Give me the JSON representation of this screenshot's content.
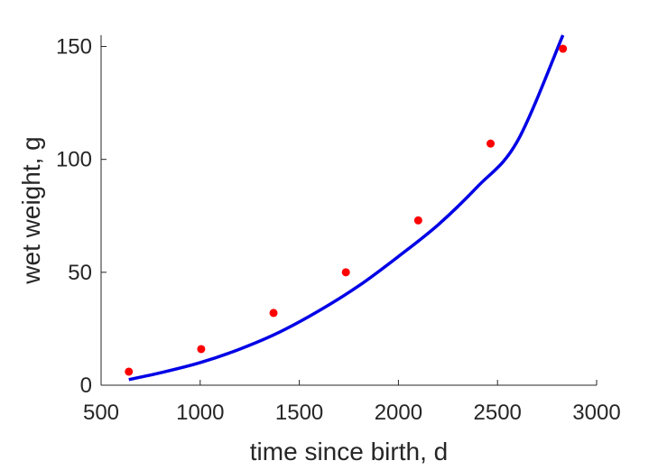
{
  "chart_data": {
    "type": "scatter",
    "title": "",
    "xlabel": "time since birth, d",
    "ylabel": "wet weight, g",
    "xlim": [
      500,
      3000
    ],
    "ylim": [
      0,
      155
    ],
    "xticks": [
      500,
      1000,
      1500,
      2000,
      2500,
      3000
    ],
    "yticks": [
      0,
      50,
      100,
      150
    ],
    "xtick_labels": [
      "500",
      "1000",
      "1500",
      "2000",
      "2500",
      "3000"
    ],
    "ytick_labels": [
      "0",
      "50",
      "100",
      "150"
    ],
    "grid": false,
    "legend": "none",
    "series": [
      {
        "kind": "scatter",
        "color": "#ff0000",
        "x": [
          640,
          1005,
          1370,
          1735,
          2100,
          2465,
          2830
        ],
        "y": [
          6,
          16,
          32,
          50,
          73,
          107,
          149
        ]
      },
      {
        "kind": "line",
        "color": "#0000e6",
        "x": [
          640,
          800,
          1000,
          1200,
          1400,
          1600,
          1800,
          2000,
          2200,
          2400,
          2600,
          2830
        ],
        "y": [
          2.5,
          5.5,
          10,
          16,
          23.5,
          33,
          44,
          57,
          71,
          88,
          108,
          155
        ]
      }
    ]
  }
}
